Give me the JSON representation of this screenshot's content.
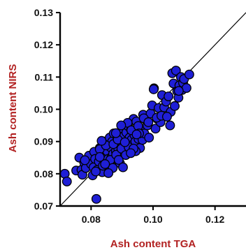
{
  "chart_data": {
    "type": "scatter",
    "title": "",
    "xlabel": "Ash content TGA",
    "ylabel": "Ash content NIRS",
    "xlim": [
      0.07,
      0.13
    ],
    "ylim": [
      0.07,
      0.13
    ],
    "xticks": [
      "0.08",
      "0.10",
      "0.12"
    ],
    "yticks": [
      "0.07",
      "0.08",
      "0.09",
      "0.10",
      "0.11",
      "0.12",
      "0.13"
    ],
    "grid": false,
    "reference_line": "y = x",
    "colors": {
      "marker_fill": "#1f1fd6",
      "marker_edge": "#000000",
      "axis_title": "#b22222",
      "reference_line": "#000000"
    },
    "series": [
      {
        "x": [
          0.0715,
          0.0722,
          0.0752,
          0.0762,
          0.0769,
          0.0772,
          0.0778,
          0.0783,
          0.0793,
          0.08,
          0.0805,
          0.0808,
          0.081,
          0.0813,
          0.0817,
          0.082,
          0.0825,
          0.0828,
          0.0836,
          0.084,
          0.0843,
          0.0845,
          0.0848,
          0.0852,
          0.0855,
          0.0858,
          0.086,
          0.0863,
          0.0866,
          0.0868,
          0.0871,
          0.0873,
          0.0876,
          0.0877,
          0.088,
          0.0882,
          0.0885,
          0.0887,
          0.0889,
          0.0892,
          0.0893,
          0.0895,
          0.0897,
          0.09,
          0.0902,
          0.0904,
          0.0906,
          0.0907,
          0.091,
          0.0912,
          0.0914,
          0.0916,
          0.0919,
          0.0921,
          0.0924,
          0.0926,
          0.0929,
          0.0931,
          0.0934,
          0.0937,
          0.094,
          0.0943,
          0.0946,
          0.095,
          0.0953,
          0.0958,
          0.0962,
          0.0966,
          0.0968,
          0.0972,
          0.0977,
          0.0982,
          0.0987,
          0.0992,
          0.0997,
          0.1003,
          0.1008,
          0.1014,
          0.1018,
          0.1024,
          0.1029,
          0.1036,
          0.1042,
          0.105,
          0.1057,
          0.1062,
          0.1066,
          0.107,
          0.1074,
          0.1078,
          0.1082,
          0.1085,
          0.109,
          0.1094,
          0.1097,
          0.11,
          0.1108,
          0.1117,
          0.078,
          0.0815,
          0.0828,
          0.0838,
          0.0848,
          0.0862,
          0.087,
          0.0881,
          0.0889,
          0.0898,
          0.0912,
          0.0918,
          0.093,
          0.0944,
          0.0952,
          0.0834,
          0.0856,
          0.0872,
          0.0886,
          0.0903,
          0.0921,
          0.0937,
          0.0955,
          0.097,
          0.1012,
          0.1027,
          0.1045,
          0.1083,
          0.0828,
          0.0845,
          0.088,
          0.0897,
          0.0909,
          0.0928,
          0.0947,
          0.0985,
          0.1002,
          0.1055
        ],
        "y": [
          0.08,
          0.0776,
          0.081,
          0.085,
          0.0812,
          0.0797,
          0.0834,
          0.0818,
          0.0856,
          0.083,
          0.0795,
          0.082,
          0.0868,
          0.0846,
          0.0722,
          0.0812,
          0.0838,
          0.088,
          0.0805,
          0.0858,
          0.09,
          0.0888,
          0.0836,
          0.087,
          0.0846,
          0.0824,
          0.0912,
          0.0882,
          0.0852,
          0.09,
          0.0862,
          0.0925,
          0.0835,
          0.089,
          0.087,
          0.0846,
          0.0912,
          0.088,
          0.086,
          0.0892,
          0.0833,
          0.091,
          0.087,
          0.0896,
          0.094,
          0.086,
          0.088,
          0.0918,
          0.089,
          0.087,
          0.0928,
          0.09,
          0.0948,
          0.0884,
          0.0912,
          0.0876,
          0.0936,
          0.0906,
          0.089,
          0.097,
          0.092,
          0.09,
          0.0962,
          0.094,
          0.0908,
          0.088,
          0.0938,
          0.0905,
          0.0983,
          0.0925,
          0.0967,
          0.095,
          0.0912,
          0.0987,
          0.1012,
          0.1065,
          0.094,
          0.097,
          0.1004,
          0.096,
          0.1044,
          0.1006,
          0.1024,
          0.104,
          0.0992,
          0.1112,
          0.108,
          0.101,
          0.112,
          0.1056,
          0.1036,
          0.1074,
          0.11,
          0.106,
          0.1082,
          0.1094,
          0.1066,
          0.1108,
          0.0842,
          0.0807,
          0.0876,
          0.0825,
          0.0888,
          0.0843,
          0.0818,
          0.0859,
          0.0843,
          0.0878,
          0.0858,
          0.0958,
          0.0935,
          0.087,
          0.0948,
          0.0902,
          0.0802,
          0.0892,
          0.0906,
          0.082,
          0.0883,
          0.0878,
          0.0925,
          0.0972,
          0.0974,
          0.098,
          0.0977,
          0.1057,
          0.0852,
          0.083,
          0.0926,
          0.095,
          0.0898,
          0.0864,
          0.0922,
          0.096,
          0.1062,
          0.095
        ]
      }
    ]
  }
}
